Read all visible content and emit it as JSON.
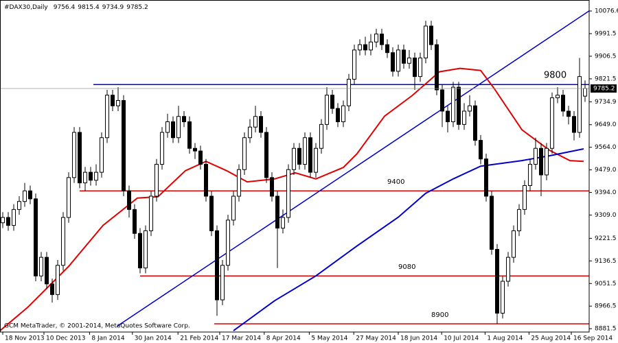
{
  "chart_data": {
    "type": "candlestick",
    "symbol": "#DAX30,Daily",
    "footer": "GCM MetaTrader, © 2001-2014, MetaQuotes Software Corp.",
    "xlim": [
      -0.5,
      106.75
    ],
    "ylim": [
      8869,
      10118
    ],
    "yticks": [
      {
        "value": 10076.6,
        "label": "10076.6"
      },
      9991.5,
      9906.5,
      9821.5,
      9734.9,
      {
        "value": 9649,
        "label": "9649.0"
      },
      {
        "value": 9564,
        "label": "9564.0"
      },
      {
        "value": 9479,
        "label": "9479.0"
      },
      {
        "value": 9394,
        "label": "9394.0"
      },
      {
        "value": 9309,
        "label": "9309.0"
      },
      9221.5,
      9136.5,
      9051.5,
      8966.5,
      8881.5
    ],
    "xticks": [
      {
        "value": 0,
        "label": "18 Nov 2013"
      },
      {
        "value": 7.5,
        "label": "10 Dec 2013"
      },
      {
        "value": 15.8,
        "label": "8 Jan 2014"
      },
      {
        "value": 23.6,
        "label": "30 Jan 2014"
      },
      {
        "value": 31.9,
        "label": "21 Feb 2014"
      },
      {
        "value": 39.5,
        "label": "17 Mar 2014"
      },
      {
        "value": 47.6,
        "label": "8 Apr 2014"
      },
      {
        "value": 55.8,
        "label": "5 May 2014"
      },
      {
        "value": 63.9,
        "label": "27 May 2014"
      },
      {
        "value": 72,
        "label": "18 Jun 2014"
      },
      {
        "value": 79.9,
        "label": "10 Jul 2014"
      },
      {
        "value": 87.8,
        "label": "1 Aug 2014"
      },
      {
        "value": 95.8,
        "label": "25 Aug 2014"
      },
      {
        "value": 103.5,
        "label": "16 Sep 2014"
      }
    ],
    "candles": [
      [
        9280,
        9320,
        9260,
        9300
      ],
      [
        9300,
        9320,
        9250,
        9270
      ],
      [
        9270,
        9350,
        9250,
        9330
      ],
      [
        9330,
        9380,
        9310,
        9360
      ],
      [
        9360,
        9430,
        9340,
        9400
      ],
      [
        9400,
        9420,
        9350,
        9370
      ],
      [
        9370,
        9390,
        9060,
        9080
      ],
      [
        9080,
        9170,
        9060,
        9150
      ],
      [
        9150,
        9170,
        9030,
        9050
      ],
      [
        9050,
        9070,
        8980,
        9010
      ],
      [
        9010,
        9140,
        8990,
        9120
      ],
      [
        9120,
        9320,
        9100,
        9300
      ],
      [
        9300,
        9470,
        9280,
        9450
      ],
      [
        9450,
        9640,
        9430,
        9620
      ],
      [
        9620,
        9640,
        9410,
        9430
      ],
      [
        9430,
        9490,
        9400,
        9470
      ],
      [
        9470,
        9490,
        9420,
        9440
      ],
      [
        9440,
        9500,
        9420,
        9470
      ],
      [
        9470,
        9620,
        9450,
        9600
      ],
      [
        9600,
        9780,
        9580,
        9760
      ],
      [
        9760,
        9780,
        9700,
        9720
      ],
      [
        9720,
        9790,
        9700,
        9740
      ],
      [
        9740,
        9760,
        9380,
        9400
      ],
      [
        9400,
        9420,
        9300,
        9330
      ],
      [
        9330,
        9350,
        9220,
        9240
      ],
      [
        9240,
        9260,
        9090,
        9110
      ],
      [
        9110,
        9270,
        9090,
        9250
      ],
      [
        9250,
        9400,
        9230,
        9380
      ],
      [
        9380,
        9520,
        9360,
        9500
      ],
      [
        9500,
        9640,
        9480,
        9620
      ],
      [
        9620,
        9690,
        9600,
        9660
      ],
      [
        9660,
        9680,
        9580,
        9600
      ],
      [
        9600,
        9720,
        9580,
        9680
      ],
      [
        9680,
        9700,
        9640,
        9660
      ],
      [
        9660,
        9680,
        9540,
        9560
      ],
      [
        9560,
        9580,
        9520,
        9550
      ],
      [
        9550,
        9570,
        9480,
        9500
      ],
      [
        9500,
        9520,
        9360,
        9380
      ],
      [
        9380,
        9400,
        9230,
        9250
      ],
      [
        9250,
        9270,
        8930,
        8990
      ],
      [
        8990,
        9140,
        8970,
        9120
      ],
      [
        9120,
        9310,
        9100,
        9290
      ],
      [
        9290,
        9400,
        9270,
        9380
      ],
      [
        9380,
        9500,
        9360,
        9480
      ],
      [
        9480,
        9620,
        9460,
        9600
      ],
      [
        9600,
        9670,
        9580,
        9640
      ],
      [
        9640,
        9720,
        9620,
        9680
      ],
      [
        9680,
        9700,
        9600,
        9620
      ],
      [
        9620,
        9640,
        9430,
        9450
      ],
      [
        9450,
        9470,
        9360,
        9380
      ],
      [
        9380,
        9400,
        9110,
        9260
      ],
      [
        9260,
        9330,
        9240,
        9300
      ],
      [
        9300,
        9500,
        9280,
        9480
      ],
      [
        9480,
        9580,
        9460,
        9560
      ],
      [
        9560,
        9580,
        9480,
        9500
      ],
      [
        9500,
        9620,
        9480,
        9600
      ],
      [
        9600,
        9620,
        9450,
        9470
      ],
      [
        9470,
        9580,
        9450,
        9560
      ],
      [
        9560,
        9670,
        9540,
        9650
      ],
      [
        9650,
        9790,
        9630,
        9760
      ],
      [
        9760,
        9780,
        9690,
        9710
      ],
      [
        9710,
        9730,
        9640,
        9660
      ],
      [
        9660,
        9740,
        9640,
        9720
      ],
      [
        9720,
        9840,
        9700,
        9820
      ],
      [
        9820,
        9950,
        9800,
        9930
      ],
      [
        9930,
        9970,
        9910,
        9950
      ],
      [
        9950,
        9980,
        9910,
        9930
      ],
      [
        9930,
        9990,
        9910,
        9960
      ],
      [
        9960,
        10010,
        9940,
        9990
      ],
      [
        9990,
        10010,
        9930,
        9950
      ],
      [
        9950,
        9970,
        9900,
        9920
      ],
      [
        9920,
        9940,
        9830,
        9850
      ],
      [
        9850,
        9950,
        9830,
        9930
      ],
      [
        9930,
        9950,
        9860,
        9880
      ],
      [
        9880,
        9930,
        9860,
        9900
      ],
      [
        9900,
        9920,
        9780,
        9830
      ],
      [
        9830,
        9920,
        9810,
        9900
      ],
      [
        9900,
        10040,
        9880,
        10020
      ],
      [
        10020,
        10040,
        9930,
        9950
      ],
      [
        9950,
        9970,
        9760,
        9780
      ],
      [
        9780,
        9800,
        9640,
        9700
      ],
      [
        9700,
        9720,
        9620,
        9660
      ],
      [
        9660,
        9810,
        9640,
        9790
      ],
      [
        9790,
        9810,
        9630,
        9650
      ],
      [
        9650,
        9730,
        9630,
        9700
      ],
      [
        9700,
        9760,
        9680,
        9720
      ],
      [
        9720,
        9740,
        9570,
        9590
      ],
      [
        9590,
        9610,
        9500,
        9520
      ],
      [
        9520,
        9540,
        9360,
        9380
      ],
      [
        9380,
        9400,
        9160,
        9180
      ],
      [
        9180,
        9200,
        8900,
        8940
      ],
      [
        8940,
        9080,
        8920,
        9060
      ],
      [
        9060,
        9170,
        9040,
        9150
      ],
      [
        9150,
        9270,
        9130,
        9250
      ],
      [
        9250,
        9350,
        9230,
        9330
      ],
      [
        9330,
        9440,
        9310,
        9420
      ],
      [
        9420,
        9520,
        9400,
        9500
      ],
      [
        9500,
        9600,
        9480,
        9560
      ],
      [
        9560,
        9580,
        9380,
        9460
      ],
      [
        9460,
        9580,
        9440,
        9560
      ],
      [
        9560,
        9770,
        9540,
        9750
      ],
      [
        9750,
        9790,
        9730,
        9760
      ],
      [
        9760,
        9780,
        9680,
        9700
      ],
      [
        9700,
        9720,
        9650,
        9680
      ],
      [
        9680,
        9700,
        9590,
        9620
      ],
      [
        9620,
        9900,
        9600,
        9830
      ],
      [
        9756.4,
        9815.4,
        9734.9,
        9785.2
      ]
    ],
    "bull_color": "#ffffff",
    "bear_color": "#000000",
    "candle_outline": "#000000",
    "moving_averages": [
      {
        "color": "#e00000",
        "x": [
          -0.5,
          4.5,
          12,
          18.25,
          24.5,
          28.25,
          33.25,
          37,
          40.75,
          44.5,
          49.5,
          53.25,
          57,
          62,
          64.5,
          69.5,
          74.5,
          79.5,
          83.25,
          87,
          89.5,
          94.5,
          99.5,
          103.25,
          105.75
        ],
        "values": [
          8874,
          8961,
          9116,
          9270,
          9373,
          9378,
          9476,
          9511,
          9476,
          9434,
          9445,
          9468,
          9445,
          9488,
          9540,
          9681,
          9758,
          9848,
          9861,
          9853,
          9784,
          9630,
          9553,
          9514,
          9511
        ]
      },
      {
        "color": "#0000cc",
        "x": [
          42,
          49.5,
          57,
          64.5,
          72,
          77,
          82,
          87,
          94.5,
          99.5,
          105.75
        ],
        "values": [
          8874,
          8987,
          9080,
          9193,
          9301,
          9391,
          9445,
          9493,
          9514,
          9532,
          9558
        ]
      }
    ],
    "trendlines": [
      {
        "color": "#0000cc",
        "x": [
          20.75,
          106.75
        ],
        "values": [
          8890,
          10077
        ]
      }
    ],
    "hlines": [
      {
        "value": 9800,
        "color": "#0000cc",
        "x": [
          16.5,
          106.75
        ],
        "label_x": 98.5
      },
      {
        "value": 9400,
        "color": "#e00000",
        "x": [
          14,
          106.75
        ],
        "label_x": 70
      },
      {
        "value": 9080,
        "color": "#e00000",
        "x": [
          25,
          106.75
        ],
        "label_x": 72
      },
      {
        "value": 8900,
        "color": "#e00000",
        "x": [
          38.5,
          106.75
        ],
        "label_x": 78
      }
    ]
  }
}
